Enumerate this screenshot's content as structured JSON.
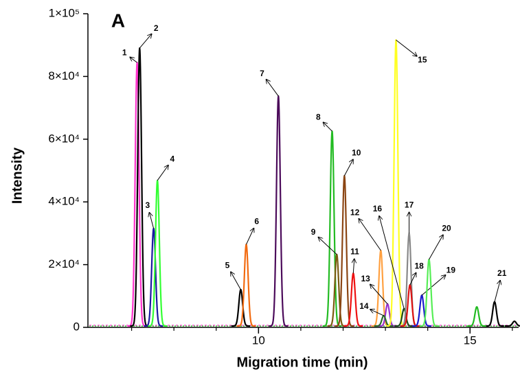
{
  "chart_data": {
    "type": "electropherogram",
    "title": "A",
    "xlabel": "Migration time (min)",
    "ylabel": "Intensity",
    "xlim": [
      6,
      16.1
    ],
    "ylim": [
      0,
      100000
    ],
    "xticks": [
      10,
      15
    ],
    "xminorticks": [
      7,
      8,
      9,
      11,
      12,
      13,
      14,
      16
    ],
    "yticks": [
      {
        "value": 0,
        "label": "0"
      },
      {
        "value": 20000,
        "label": "2×10⁴"
      },
      {
        "value": 40000,
        "label": "4×10⁴"
      },
      {
        "value": 60000,
        "label": "6×10⁴"
      },
      {
        "value": 80000,
        "label": "8×10⁴"
      },
      {
        "value": 100000,
        "label": "1×10⁵"
      }
    ],
    "peaks": [
      {
        "label": "1",
        "time": 7.13,
        "height": 84000,
        "color": "#ff33cc"
      },
      {
        "label": "2",
        "time": 7.19,
        "height": 88600,
        "color": "#000000"
      },
      {
        "label": "3",
        "time": 7.52,
        "height": 31100,
        "color": "#1a1aa0"
      },
      {
        "label": "4",
        "time": 7.61,
        "height": 46400,
        "color": "#33ff33"
      },
      {
        "label": "5",
        "time": 9.58,
        "height": 11600,
        "color": "#000000"
      },
      {
        "label": "6",
        "time": 9.71,
        "height": 26000,
        "color": "#f26a0f"
      },
      {
        "label": "7",
        "time": 10.47,
        "height": 73300,
        "color": "#4b0a5a"
      },
      {
        "label": "8",
        "time": 11.74,
        "height": 62100,
        "color": "#22bb22"
      },
      {
        "label": "9",
        "time": 11.85,
        "height": 22800,
        "color": "#7a5a10"
      },
      {
        "label": "10",
        "time": 12.03,
        "height": 47900,
        "color": "#8b4513"
      },
      {
        "label": "11",
        "time": 12.24,
        "height": 16800,
        "color": "#ee1111"
      },
      {
        "label": "12",
        "time": 12.89,
        "height": 24100,
        "color": "#ffa040"
      },
      {
        "label": "13",
        "time": 13.05,
        "height": 7000,
        "color": "#9933cc"
      },
      {
        "label": "14",
        "time": 12.96,
        "height": 3300,
        "color": "#2a6b2a"
      },
      {
        "label": "15",
        "time": 13.25,
        "height": 91200,
        "color": "#ffff22"
      },
      {
        "label": "16",
        "time": 13.44,
        "height": 5500,
        "color": "#1a4a1a"
      },
      {
        "label": "17",
        "time": 13.56,
        "height": 29500,
        "color": "#888888"
      },
      {
        "label": "18",
        "time": 13.58,
        "height": 13100,
        "color": "#dd1111"
      },
      {
        "label": "19",
        "time": 13.86,
        "height": 9800,
        "color": "#1a1acc"
      },
      {
        "label": "20",
        "time": 14.03,
        "height": 21200,
        "color": "#55ee55"
      },
      {
        "label": "21",
        "time": 15.58,
        "height": 7700,
        "color": "#000000"
      },
      {
        "label": null,
        "time": 15.16,
        "height": 6100,
        "color": "#22bb22"
      },
      {
        "label": null,
        "time": 16.05,
        "height": 1500,
        "color": "#000000"
      }
    ]
  }
}
